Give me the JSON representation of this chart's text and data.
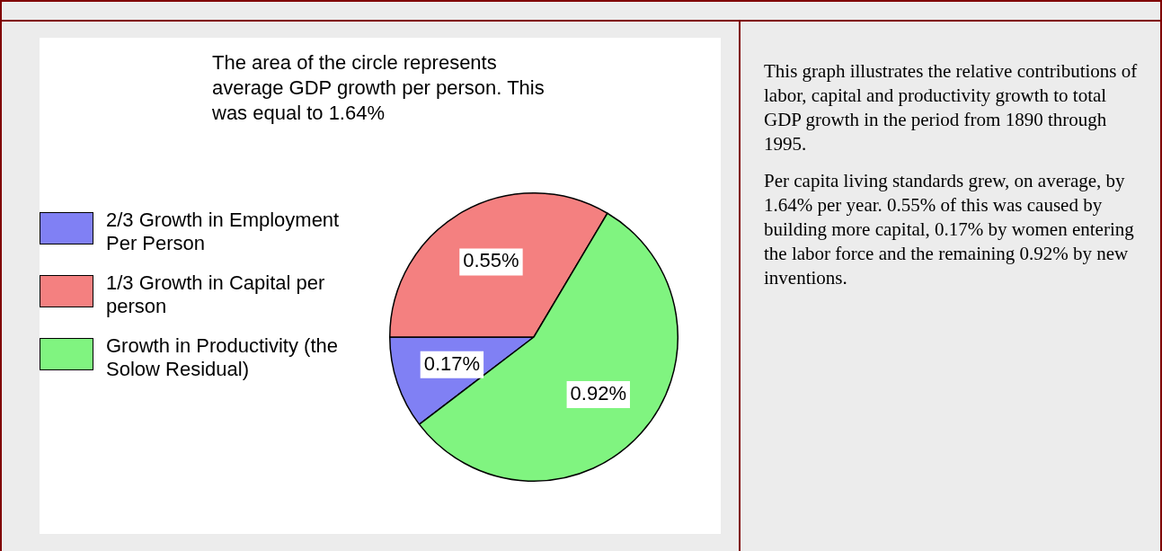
{
  "chart_data": {
    "type": "pie",
    "categories": [
      "2/3 Growth in Employment Per Person",
      "1/3 Growth in Capital per person",
      "Growth in Productivity (the Solow Residual)"
    ],
    "values": [
      0.17,
      0.55,
      0.92
    ],
    "colors": [
      "#8080f4",
      "#f48080",
      "#80f480"
    ],
    "value_labels": [
      "0.17%",
      "0.55%",
      "0.92%"
    ],
    "legend": "left",
    "annotations": [
      "The area of the circle represents average GDP growth per person. This was equal to 1.64%",
      "This graph illustrates the relative contributions of labor, capital and productivity growth to total GDP growth in the period from 1890 through 1995.",
      "Per capita living standards grew, on average,  by 1.64% per year. 0.55% of this was caused by building more capital, 0.17% by women entering the labor force and the remaining 0.92% by new inventions."
    ]
  }
}
